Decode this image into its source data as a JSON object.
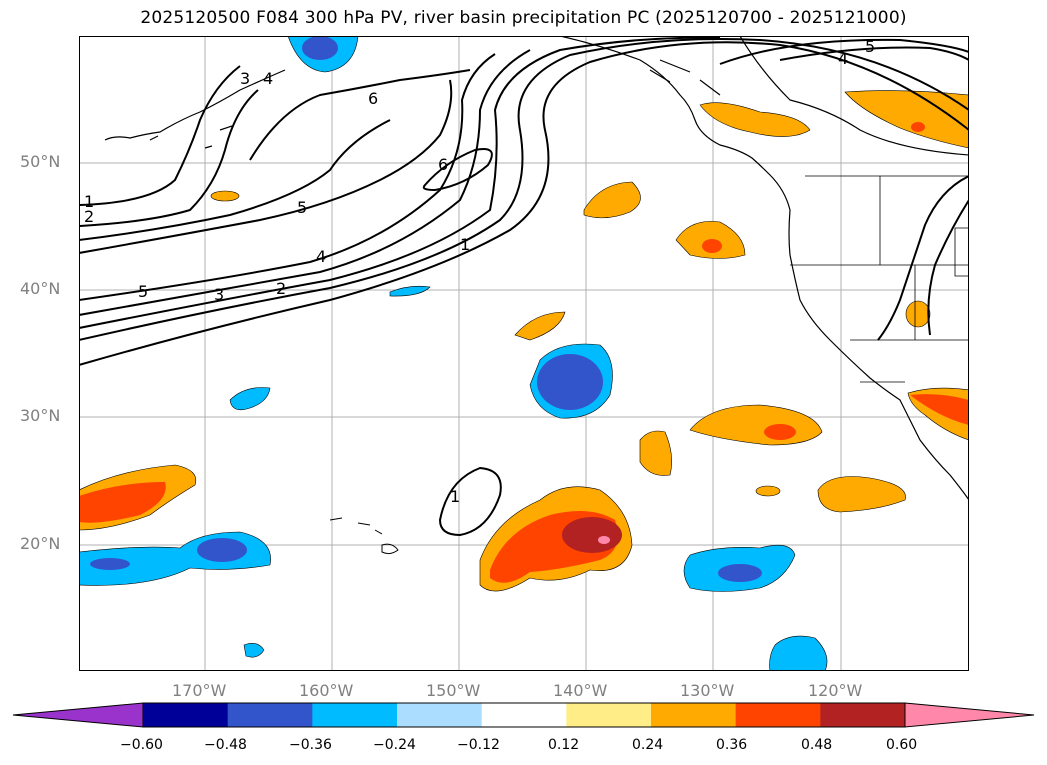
{
  "title": "2025120500 F084 300 hPa PV, river basin precipitation PC (2025120700 - 2025121000)",
  "map": {
    "lat_labels": [
      "50°N",
      "40°N",
      "30°N",
      "20°N"
    ],
    "lon_labels": [
      "170°W",
      "160°W",
      "150°W",
      "140°W",
      "130°W",
      "120°W"
    ],
    "contour_labels": [
      "1",
      "2",
      "3",
      "4",
      "5",
      "6",
      "6",
      "5",
      "4",
      "3",
      "2",
      "5",
      "4",
      "1",
      "1"
    ],
    "grid_color": "#b0b0b0"
  },
  "colorbar": {
    "colors": [
      "#9933cc",
      "#000099",
      "#3355cc",
      "#00bbff",
      "#aaddff",
      "#ffffff",
      "#ffee88",
      "#ffaa00",
      "#ff4400",
      "#b22222",
      "#ff88aa"
    ],
    "tick_labels": [
      "−0.60",
      "−0.48",
      "−0.36",
      "−0.24",
      "−0.12",
      "0.12",
      "0.24",
      "0.36",
      "0.48",
      "0.60"
    ]
  }
}
